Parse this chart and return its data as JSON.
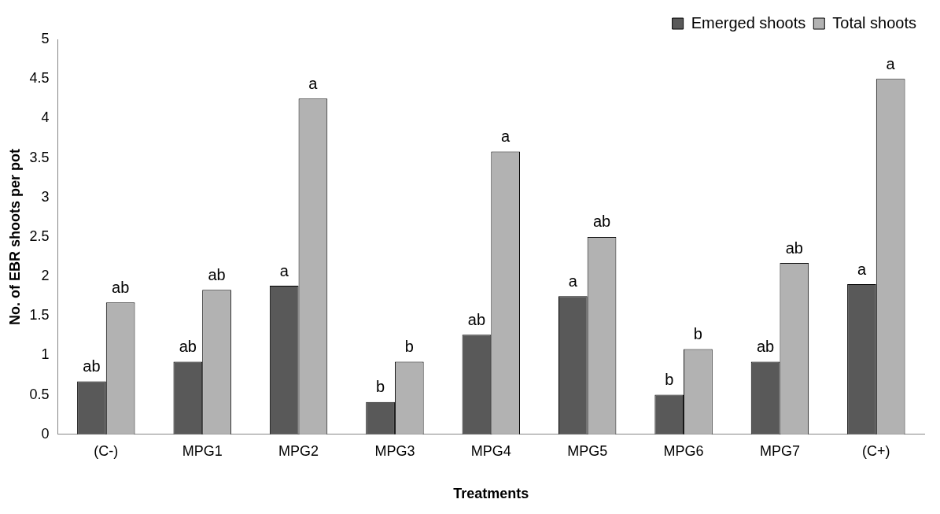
{
  "chart_data": {
    "type": "bar",
    "xlabel": "Treatments",
    "ylabel": "No. of EBR shoots per pot",
    "categories": [
      "(C-)",
      "MPG1",
      "MPG2",
      "MPG3",
      "MPG4",
      "MPG5",
      "MPG6",
      "MPG7",
      "(C+)"
    ],
    "series": [
      {
        "name": "Emerged shoots",
        "color": "#595959",
        "values": [
          0.67,
          0.92,
          1.88,
          0.41,
          1.26,
          1.75,
          0.5,
          0.92,
          1.9
        ],
        "value_labels": [
          "ab",
          "ab",
          "a",
          "b",
          "ab",
          "a",
          "b",
          "ab",
          "a"
        ]
      },
      {
        "name": "Total shoots",
        "color": "#b2b2b2",
        "values": [
          1.67,
          1.83,
          4.25,
          0.92,
          3.58,
          2.5,
          1.08,
          2.17,
          4.5
        ],
        "value_labels": [
          "ab",
          "ab",
          "a",
          "b",
          "a",
          "ab",
          "b",
          "ab",
          "a"
        ]
      }
    ],
    "ylim": [
      0,
      5
    ],
    "yticks": [
      0,
      0.5,
      1,
      1.5,
      2,
      2.5,
      3,
      3.5,
      4,
      4.5,
      5
    ],
    "grid": false,
    "legend": "top right"
  }
}
